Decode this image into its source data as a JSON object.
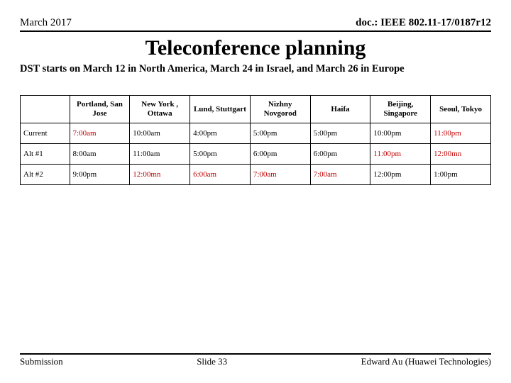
{
  "header": {
    "left": "March 2017",
    "right": "doc.: IEEE 802.11-17/0187r12"
  },
  "title": "Teleconference planning",
  "subtitle": "DST starts on March 12 in North America, March 24 in Israel, and March 26 in Europe",
  "table": {
    "columns": [
      "Portland, San Jose",
      "New York , Ottawa",
      "Lund, Stuttgart",
      "Nizhny Novgorod",
      "Haifa",
      "Beijing, Singapore",
      "Seoul, Tokyo"
    ],
    "rows": [
      {
        "label": "Current",
        "cells": [
          {
            "text": "7:00am",
            "highlight": true
          },
          {
            "text": "10:00am",
            "highlight": false
          },
          {
            "text": "4:00pm",
            "highlight": false
          },
          {
            "text": "5:00pm",
            "highlight": false
          },
          {
            "text": "5:00pm",
            "highlight": false
          },
          {
            "text": "10:00pm",
            "highlight": false
          },
          {
            "text": "11:00pm",
            "highlight": true
          }
        ]
      },
      {
        "label": "Alt #1",
        "cells": [
          {
            "text": "8:00am",
            "highlight": false
          },
          {
            "text": "11:00am",
            "highlight": false
          },
          {
            "text": "5:00pm",
            "highlight": false
          },
          {
            "text": "6:00pm",
            "highlight": false
          },
          {
            "text": "6:00pm",
            "highlight": false
          },
          {
            "text": "11:00pm",
            "highlight": true
          },
          {
            "text": "12:00mn",
            "highlight": true
          }
        ]
      },
      {
        "label": "Alt #2",
        "cells": [
          {
            "text": "9:00pm",
            "highlight": false
          },
          {
            "text": "12:00mn",
            "highlight": true
          },
          {
            "text": "6:00am",
            "highlight": true
          },
          {
            "text": "7:00am",
            "highlight": true
          },
          {
            "text": "7:00am",
            "highlight": true
          },
          {
            "text": "12:00pm",
            "highlight": false
          },
          {
            "text": "1:00pm",
            "highlight": false
          }
        ]
      }
    ]
  },
  "footer": {
    "left": "Submission",
    "center": "Slide 33",
    "right": "Edward Au (Huawei Technologies)"
  },
  "style": {
    "highlight_color": "#c00000",
    "text_color": "#000000",
    "background": "#ffffff"
  }
}
